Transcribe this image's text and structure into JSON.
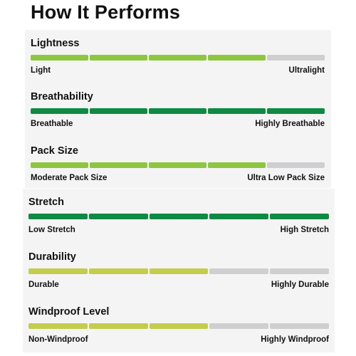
{
  "title": "How It Performs",
  "colors": {
    "light_green": "#8dc63f",
    "dark_green": "#0f8a43",
    "yellow_green": "#c2cd4d",
    "empty": "#cfcfd1"
  },
  "metrics": [
    {
      "name": "Lightness",
      "min_label": "Light",
      "max_label": "Ultralight",
      "level": 4,
      "segments": 5,
      "color": "light_green"
    },
    {
      "name": "Breathability",
      "min_label": "Breathable",
      "max_label": "Highly Breathable",
      "level": 5,
      "segments": 5,
      "color": "dark_green"
    },
    {
      "name": "Pack Size",
      "min_label": "Moderate Pack Size",
      "max_label": "Ultra Low Pack Size",
      "level": 4,
      "segments": 5,
      "color": "light_green"
    },
    {
      "name": "Stretch",
      "min_label": "Low Stretch",
      "max_label": "High Stretch",
      "level": 5,
      "segments": 5,
      "color": "dark_green"
    },
    {
      "name": "Durability",
      "min_label": "Durable",
      "max_label": "Highly Durable",
      "level": 3,
      "segments": 5,
      "color": "yellow_green"
    },
    {
      "name": "Windproof Level",
      "min_label": "Non-Windproof",
      "max_label": "Highly Windproof",
      "level": 3,
      "segments": 5,
      "color": "yellow_green"
    }
  ]
}
